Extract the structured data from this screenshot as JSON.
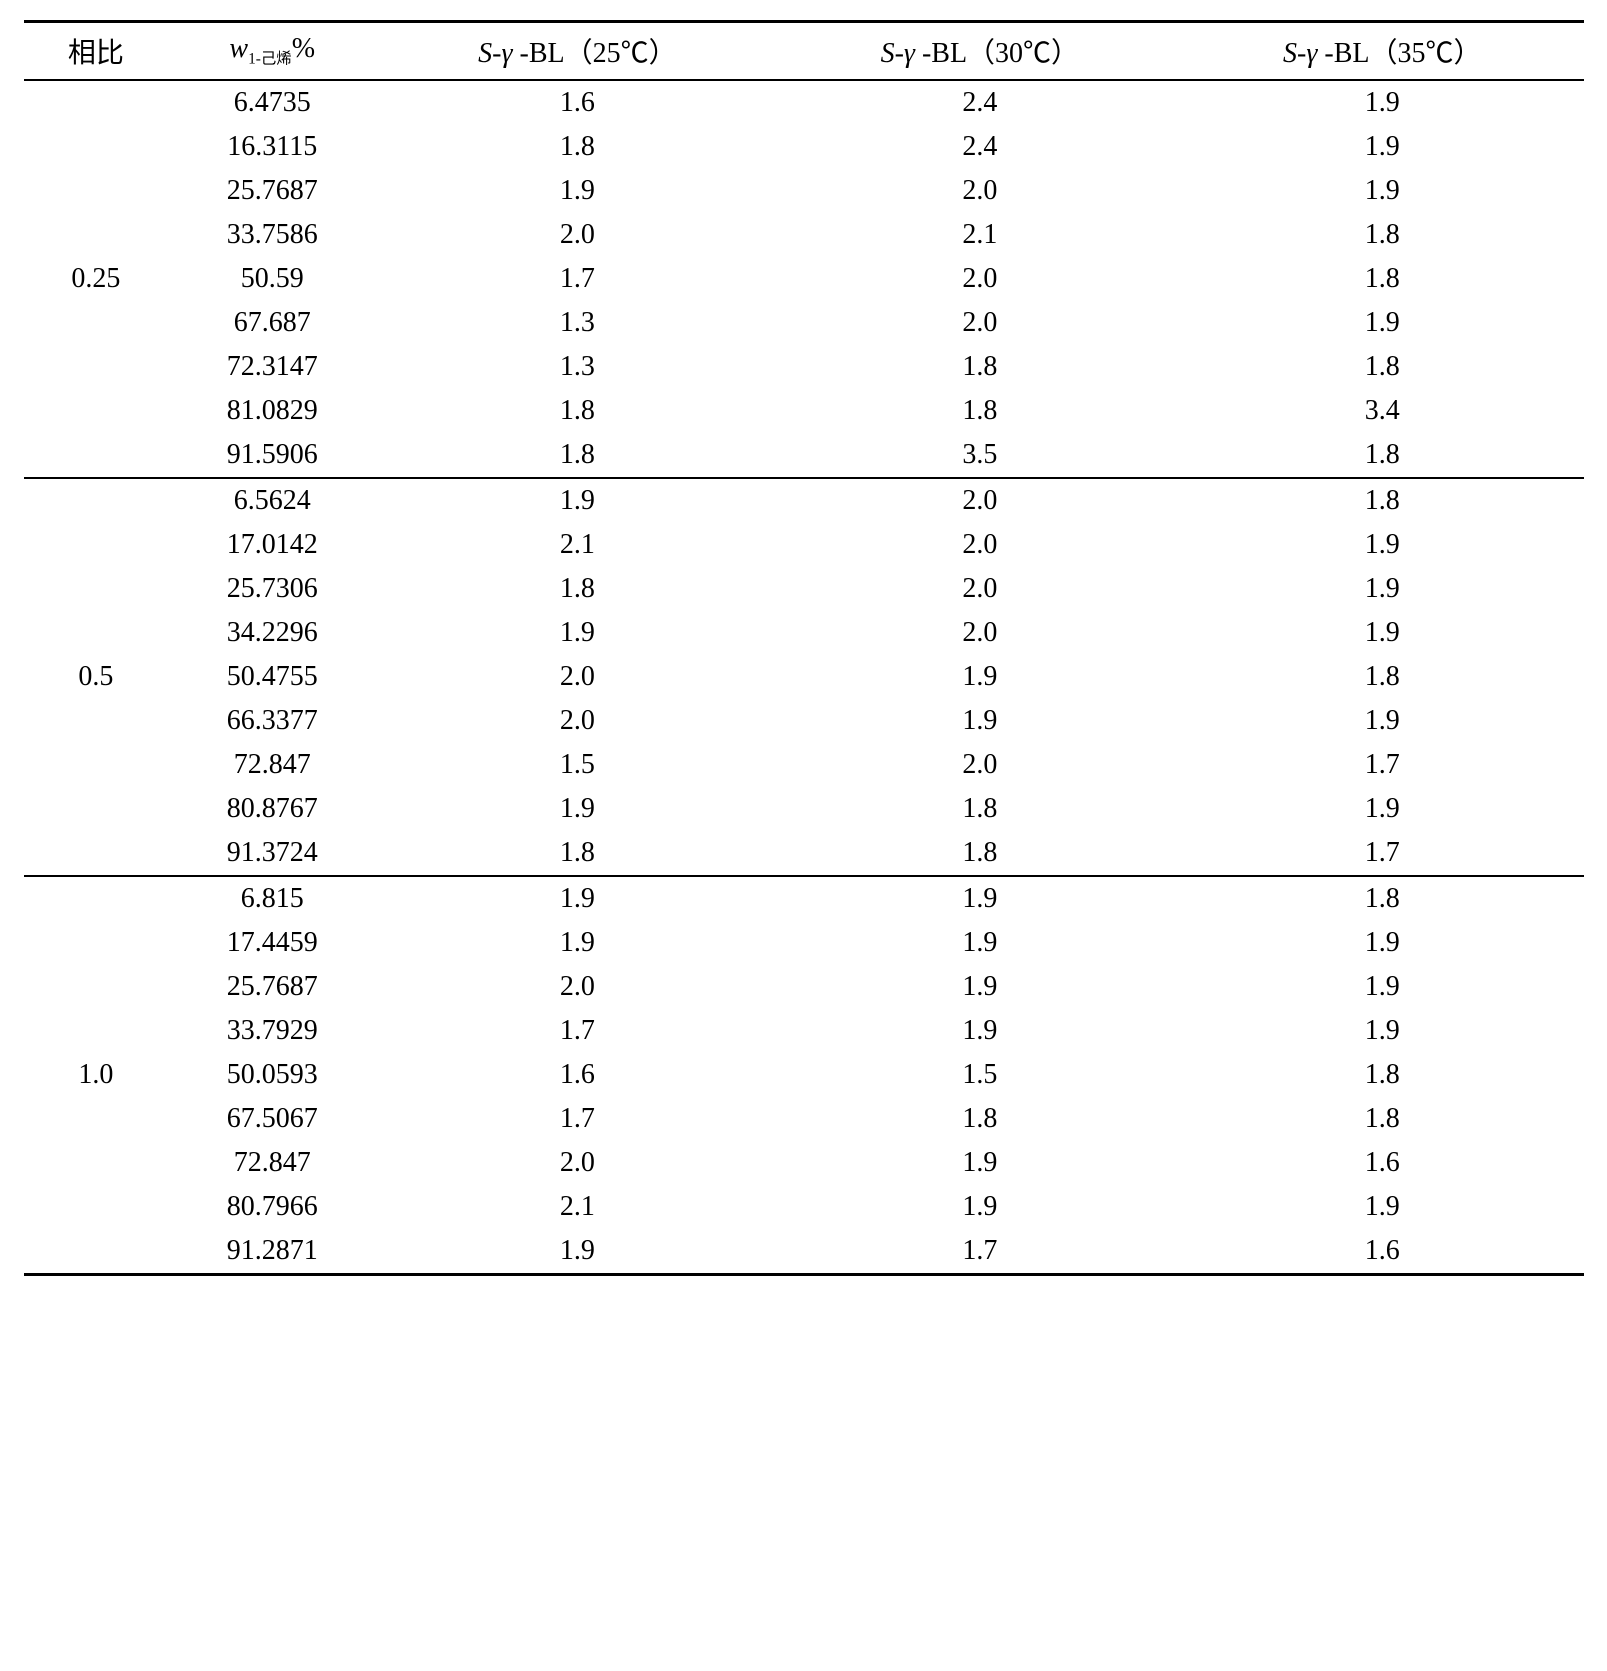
{
  "table": {
    "columns": [
      "相比",
      "<span class=\"it\">w</span><span class=\"sub\">1-己烯</span>%",
      "<span class=\"it\">S</span>-<span class=\"it\">γ</span> -BL（25℃）",
      "<span class=\"it\">S</span>-<span class=\"it\">γ</span> -BL（30℃）",
      "<span class=\"it\">S</span>-<span class=\"it\">γ</span> -BL（35℃）"
    ],
    "groups": [
      {
        "label": "0.25",
        "rows": [
          [
            "6.4735",
            "1.6",
            "2.4",
            "1.9"
          ],
          [
            "16.3115",
            "1.8",
            "2.4",
            "1.9"
          ],
          [
            "25.7687",
            "1.9",
            "2.0",
            "1.9"
          ],
          [
            "33.7586",
            "2.0",
            "2.1",
            "1.8"
          ],
          [
            "50.59",
            "1.7",
            "2.0",
            "1.8"
          ],
          [
            "67.687",
            "1.3",
            "2.0",
            "1.9"
          ],
          [
            "72.3147",
            "1.3",
            "1.8",
            "1.8"
          ],
          [
            "81.0829",
            "1.8",
            "1.8",
            "3.4"
          ],
          [
            "91.5906",
            "1.8",
            "3.5",
            "1.8"
          ]
        ]
      },
      {
        "label": "0.5",
        "rows": [
          [
            "6.5624",
            "1.9",
            "2.0",
            "1.8"
          ],
          [
            "17.0142",
            "2.1",
            "2.0",
            "1.9"
          ],
          [
            "25.7306",
            "1.8",
            "2.0",
            "1.9"
          ],
          [
            "34.2296",
            "1.9",
            "2.0",
            "1.9"
          ],
          [
            "50.4755",
            "2.0",
            "1.9",
            "1.8"
          ],
          [
            "66.3377",
            "2.0",
            "1.9",
            "1.9"
          ],
          [
            "72.847",
            "1.5",
            "2.0",
            "1.7"
          ],
          [
            "80.8767",
            "1.9",
            "1.8",
            "1.9"
          ],
          [
            "91.3724",
            "1.8",
            "1.8",
            "1.7"
          ]
        ]
      },
      {
        "label": "1.0",
        "rows": [
          [
            "6.815",
            "1.9",
            "1.9",
            "1.8"
          ],
          [
            "17.4459",
            "1.9",
            "1.9",
            "1.9"
          ],
          [
            "25.7687",
            "2.0",
            "1.9",
            "1.9"
          ],
          [
            "33.7929",
            "1.7",
            "1.9",
            "1.9"
          ],
          [
            "50.0593",
            "1.6",
            "1.5",
            "1.8"
          ],
          [
            "67.5067",
            "1.7",
            "1.8",
            "1.8"
          ],
          [
            "72.847",
            "2.0",
            "1.9",
            "1.6"
          ],
          [
            "80.7966",
            "2.1",
            "1.9",
            "1.9"
          ],
          [
            "91.2871",
            "1.9",
            "1.7",
            "1.6"
          ]
        ]
      }
    ]
  }
}
